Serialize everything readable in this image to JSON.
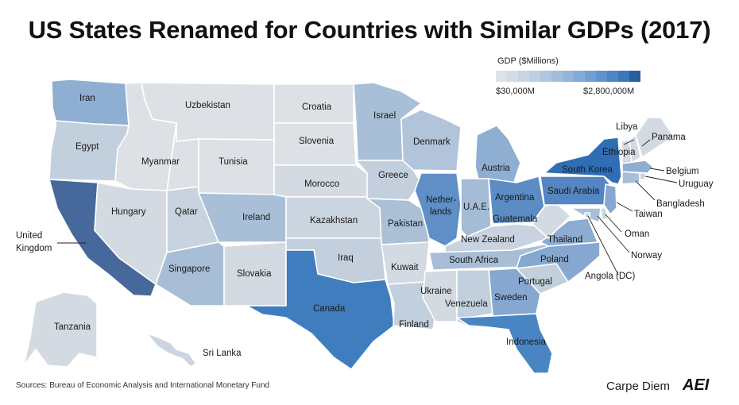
{
  "title": "US States Renamed for Countries with Similar GDPs (2017)",
  "legend": {
    "title": "GDP ($Millions)",
    "min_label": "$30,000M",
    "max_label": "$2,800,000M",
    "scale_colors": [
      "#dde2e8",
      "#d3dce4",
      "#c8d5e1",
      "#bccfe0",
      "#afc7df",
      "#a1bfdd",
      "#92b6db",
      "#82acd8",
      "#709fd2",
      "#5e93cc",
      "#4c86c5",
      "#3a78bd",
      "#2a5f9e"
    ]
  },
  "states": [
    {
      "code": "WA",
      "country": "Iran",
      "color": "#8eaed2"
    },
    {
      "code": "OR",
      "country": "Egypt",
      "color": "#c2d0de"
    },
    {
      "code": "CA",
      "country": "United Kingdom",
      "color": "#46689a"
    },
    {
      "code": "ID",
      "country": "Uzbekistan",
      "color": "#dde1e6"
    },
    {
      "code": "NV",
      "country": "Hungary",
      "color": "#d3dae2"
    },
    {
      "code": "MT",
      "country": "Croatia",
      "color": "#dde1e6"
    },
    {
      "code": "WY",
      "country": "Myanmar",
      "color": "#dde1e6"
    },
    {
      "code": "UT",
      "country": "Qatar",
      "color": "#c8d3df"
    },
    {
      "code": "AZ",
      "country": "Singapore",
      "color": "#a7bed6"
    },
    {
      "code": "CO",
      "country": "Ireland",
      "color": "#a9bfd7"
    },
    {
      "code": "NM",
      "country": "Slovakia",
      "color": "#d3dae2"
    },
    {
      "code": "ND",
      "country": "Croatia",
      "color": "#dde1e6"
    },
    {
      "code": "SD",
      "country": "Slovenia",
      "color": "#dde1e6"
    },
    {
      "code": "NE",
      "country": "Morocco",
      "color": "#d3dae2"
    },
    {
      "code": "KS",
      "country": "Kazakhstan",
      "color": "#cbd5df"
    },
    {
      "code": "OK",
      "country": "Iraq",
      "color": "#c3cfdd"
    },
    {
      "code": "TX",
      "country": "Canada",
      "color": "#3f7dbf"
    },
    {
      "code": "MN",
      "country": "Israel",
      "color": "#a9bfd7"
    },
    {
      "code": "IA",
      "country": "Greece",
      "color": "#c3cfdd"
    },
    {
      "code": "MO",
      "country": "Pakistan",
      "color": "#abc0d7"
    },
    {
      "code": "AR",
      "country": "Kuwait",
      "color": "#d3dae2"
    },
    {
      "code": "LA",
      "country": "Finland",
      "color": "#c2cfdc"
    },
    {
      "code": "WI",
      "country": "Denmark",
      "color": "#b1c4d9"
    },
    {
      "code": "IL",
      "country": "Netherlands",
      "color": "#5f8fc6"
    },
    {
      "code": "MI",
      "country": "Austria",
      "color": "#8eaed2"
    },
    {
      "code": "IN",
      "country": "U.A.E.",
      "color": "#a4bcd6"
    },
    {
      "code": "OH",
      "country": "Argentina",
      "color": "#5b8cc4"
    },
    {
      "code": "KY",
      "country": "New Zealand",
      "color": "#c8d3df"
    },
    {
      "code": "TN",
      "country": "South Africa",
      "color": "#a7bed6"
    },
    {
      "code": "MS",
      "country": "Ukraine",
      "color": "#d3dae2"
    },
    {
      "code": "AL",
      "country": "Venezuela",
      "color": "#c2cfdc"
    },
    {
      "code": "GA",
      "country": "Sweden",
      "color": "#86a8d0"
    },
    {
      "code": "FL",
      "country": "Indonesia",
      "color": "#4a85c3"
    },
    {
      "code": "SC",
      "country": "Portugal",
      "color": "#c2cfdc"
    },
    {
      "code": "NC",
      "country": "Poland",
      "color": "#86a8d0"
    },
    {
      "code": "VA",
      "country": "Thailand",
      "color": "#8cacd2"
    },
    {
      "code": "WV",
      "country": "Guatemala",
      "color": "#d3dae2"
    },
    {
      "code": "PA",
      "country": "Saudi Arabia",
      "color": "#5585c2"
    },
    {
      "code": "NY",
      "country": "South Korea",
      "color": "#2f6eb5"
    },
    {
      "code": "VT",
      "country": "Ethiopia",
      "color": "#d3dae2"
    },
    {
      "code": "NH",
      "country": "Libya",
      "color": "#d3dae2"
    },
    {
      "code": "ME",
      "country": "Panama",
      "color": "#d3dae2"
    },
    {
      "code": "MA",
      "country": "Belgium",
      "color": "#8eaed2"
    },
    {
      "code": "RI",
      "country": "Uruguay",
      "color": "#c8d3df"
    },
    {
      "code": "CT",
      "country": "Bangladesh",
      "color": "#a9bfd7"
    },
    {
      "code": "NJ",
      "country": "Taiwan",
      "color": "#86a8d0"
    },
    {
      "code": "DE",
      "country": "Oman",
      "color": "#c8d3df"
    },
    {
      "code": "MD",
      "country": "Norway",
      "color": "#a9bfd7"
    },
    {
      "code": "DC",
      "country": "Angola",
      "dc_suffix": "(DC)",
      "color": "#c8d3df"
    },
    {
      "code": "AK",
      "country": "Tanzania",
      "color": "#d3dae2"
    },
    {
      "code": "HI",
      "country": "Sri Lanka",
      "color": "#cbd5df"
    }
  ],
  "labels": {
    "iran": "Iran",
    "egypt": "Egypt",
    "uk_line1": "United",
    "uk_line2": "Kingdom",
    "uzbekistan": "Uzbekistan",
    "hungary": "Hungary",
    "croatia": "Croatia",
    "myanmar": "Myanmar",
    "qatar": "Qatar",
    "singapore": "Singapore",
    "ireland": "Ireland",
    "slovakia": "Slovakia",
    "slovenia": "Slovenia",
    "tunisia": "Tunisia",
    "morocco": "Morocco",
    "kazakhstan": "Kazakhstan",
    "iraq": "Iraq",
    "canada": "Canada",
    "israel": "Israel",
    "greece": "Greece",
    "pakistan": "Pakistan",
    "kuwait": "Kuwait",
    "finland": "Finland",
    "denmark": "Denmark",
    "netherlands_line1": "Nether-",
    "netherlands_line2": "lands",
    "austria": "Austria",
    "uae": "U.A.E.",
    "argentina": "Argentina",
    "new_zealand": "New Zealand",
    "south_africa": "South Africa",
    "ukraine": "Ukraine",
    "venezuela": "Venezuela",
    "sweden": "Sweden",
    "indonesia": "Indonesia",
    "portugal": "Portugal",
    "poland": "Poland",
    "thailand": "Thailand",
    "guatemala": "Guatemala",
    "saudi_arabia": "Saudi Arabia",
    "south_korea": "South Korea",
    "ethiopia": "Ethiopia",
    "libya": "Libya",
    "panama": "Panama",
    "belgium": "Belgium",
    "uruguay": "Uruguay",
    "bangladesh": "Bangladesh",
    "taiwan": "Taiwan",
    "oman": "Oman",
    "norway": "Norway",
    "angola": "Angola",
    "dc": "(DC)",
    "tanzania": "Tanzania",
    "sri_lanka": "Sri Lanka"
  },
  "source": "Sources: Bureau of Economic Analysis and International Monetary Fund",
  "brand": "Carpe Diem",
  "logo_text": "AEI"
}
